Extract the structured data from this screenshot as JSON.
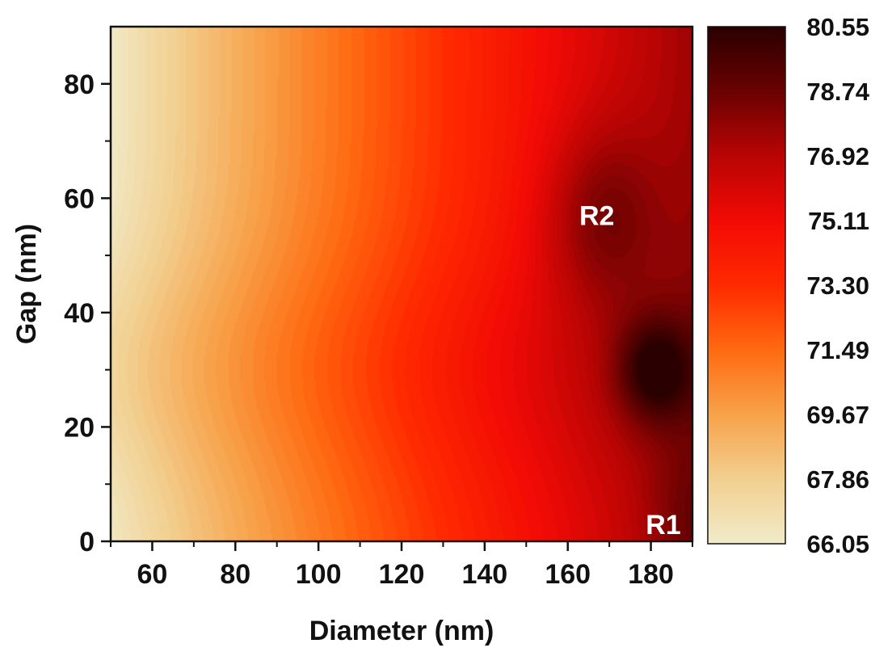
{
  "chart_data": {
    "type": "heatmap",
    "title": "",
    "xlabel": "Diameter (nm)",
    "ylabel": "Gap (nm)",
    "xlim": [
      50,
      190
    ],
    "ylim": [
      0,
      90
    ],
    "x_ticks": [
      "60",
      "80",
      "100",
      "120",
      "140",
      "160",
      "180"
    ],
    "y_ticks": [
      "0",
      "20",
      "40",
      "60",
      "80"
    ],
    "colorbar": {
      "min": 66.05,
      "max": 80.55,
      "tick_labels": [
        "80.55",
        "78.74",
        "76.92",
        "75.11",
        "73.30",
        "71.49",
        "69.67",
        "67.86",
        "66.05"
      ],
      "colors": [
        "#f1ebc9",
        "#f2cf90",
        "#f7a24a",
        "#ff6a10",
        "#ff2a00",
        "#f20a05",
        "#b80504",
        "#6a0202",
        "#2a0000"
      ]
    },
    "surface": {
      "base_trend": "increases with diameter from about 66 at 50 nm to about 77 at 190 nm; contours bulge toward smaller diameter near gap 30 nm",
      "maxima": [
        {
          "label": "R2",
          "diameter": 168,
          "gap": 57,
          "value": 79.5
        },
        {
          "label": "R1",
          "diameter": 181,
          "gap": 30,
          "value": 80.55
        }
      ]
    },
    "annotations": [
      {
        "text": "R2",
        "diameter": 167,
        "gap": 57
      },
      {
        "text": "R1",
        "diameter": 183,
        "gap": 3
      }
    ]
  }
}
